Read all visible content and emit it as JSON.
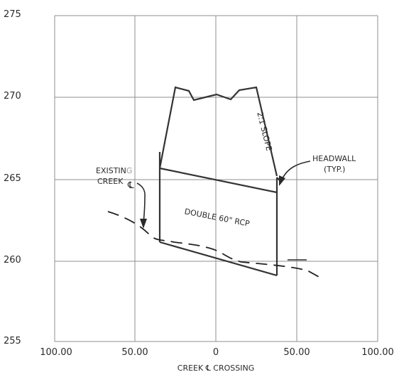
{
  "y_axis_labels": [
    "275",
    "270",
    "265",
    "260",
    "255"
  ],
  "x_axis_labels": [
    "100.00",
    "50.00",
    "0",
    "50.00",
    "100.00"
  ],
  "x_axis_title": "CREEK ℄ CROSSING",
  "annotations": {
    "existing_creek_line1": "EXISTIN",
    "existing_creek_line1_tail": "G",
    "existing_creek_line2": "CREEK",
    "centerline_symbol": "℄",
    "headwall_line1": "HEADWALL",
    "headwall_line2": "(TYP.)",
    "pipe_label": "DOUBLE 60\" RCP",
    "slope_label": "2:1 SLOPE"
  },
  "colors": {
    "grid": "#8f8f8f",
    "ink": "#2a2a2a",
    "faint_ink": "#9a9a9a",
    "background": "#ffffff"
  }
}
